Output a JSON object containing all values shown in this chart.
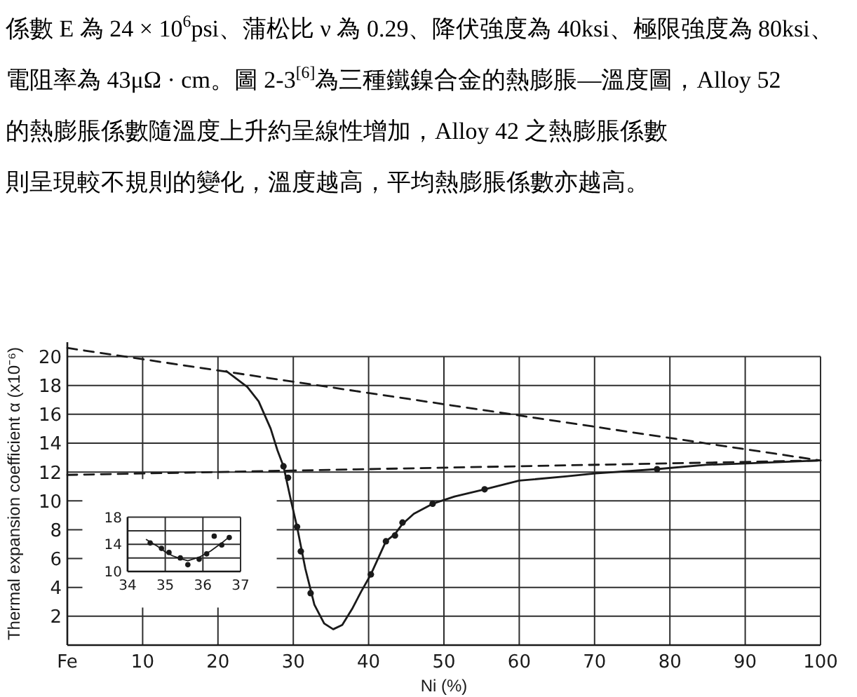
{
  "chart_data": [
    {
      "type": "line",
      "annotations": [
        "係數 E 為 24 × 10$^{6}$psi、蒲松比 ν 為 0.29、降伏強度為 40ksi、極限強度為 80ksi、",
        "電阻率為 43μΩ · cm。圖 2-3$^{[6]}$為三種鐵鎳合金的熱膨脹—溫度圖，Alloy 52",
        "的熱膨脹係數隨溫度上升約呈線性增加，Alloy 42 之熱膨脹係數",
        "則呈現較不規則的變化，溫度越高，平均熱膨脹係數亦越高。"
      ],
      "xlabel": "Ni (%)",
      "ylabel": "Thermal expansion coefficient α (x10⁻⁶)",
      "xlim": [
        0,
        100
      ],
      "xticks": [
        {
          "value": 0,
          "label": "Fe"
        },
        10,
        20,
        30,
        40,
        50,
        60,
        70,
        80,
        90,
        100
      ],
      "ylim": [
        0,
        21
      ],
      "yticks": [
        2,
        4,
        6,
        8,
        10,
        12,
        14,
        16,
        18,
        20
      ],
      "grid": true,
      "series": [
        {
          "type": "line",
          "line_style": "dashed",
          "color": "#1a1a1a",
          "x": [
            0,
            100
          ],
          "values": [
            20.6,
            12.8
          ]
        },
        {
          "type": "line",
          "line_style": "dashed",
          "color": "#1a1a1a",
          "x": [
            0,
            100
          ],
          "values": [
            11.8,
            12.8
          ]
        },
        {
          "type": "line",
          "line_style": "solid",
          "color": "#1a1a1a",
          "x": [
            21.1,
            23.9,
            25.4,
            27.0,
            27.9,
            28.7,
            29.7,
            30.5,
            31.6,
            32.8,
            34.1,
            35.3,
            36.5,
            37.8,
            39.0,
            40.3,
            42.3,
            43.5,
            44.5,
            46.0,
            48.5,
            51.4,
            55.4,
            60.0,
            66.2,
            70.1,
            78.3,
            84.8,
            90.2,
            100
          ],
          "values": [
            19.0,
            17.9,
            16.9,
            15.0,
            13.5,
            12.4,
            10.0,
            8.2,
            5.3,
            2.8,
            1.5,
            1.1,
            1.4,
            2.5,
            3.7,
            4.9,
            7.2,
            7.7,
            8.4,
            9.1,
            9.8,
            10.3,
            10.8,
            11.4,
            11.7,
            11.9,
            12.2,
            12.5,
            12.6,
            12.8
          ]
        },
        {
          "type": "scatter",
          "marker": "circle",
          "color": "#1a1a1a",
          "x": [
            28.7,
            29.3,
            30.5,
            31.0,
            32.3,
            40.3,
            42.3,
            43.5,
            44.5,
            48.5,
            55.4,
            78.3
          ],
          "values": [
            12.4,
            11.6,
            8.2,
            6.5,
            3.6,
            4.9,
            7.2,
            7.6,
            8.5,
            9.8,
            10.8,
            12.2
          ]
        }
      ]
    },
    {
      "type": "line",
      "xlim": [
        34,
        37
      ],
      "xticks": [
        34,
        35,
        36,
        37
      ],
      "ylim": [
        10,
        18
      ],
      "yticks": [
        10,
        {
          "value": 12,
          "label": null
        },
        14,
        {
          "value": 16,
          "label": null
        },
        18
      ],
      "grid": true,
      "series": [
        {
          "type": "line",
          "line_style": "solid",
          "color": "#1a1a1a",
          "x": [
            34.5,
            34.8,
            35.0,
            35.2,
            35.4,
            35.6,
            35.9,
            36.2,
            36.5,
            36.7
          ],
          "values": [
            14.7,
            13.7,
            12.9,
            12.3,
            11.9,
            11.6,
            12.1,
            13.0,
            14.2,
            15.1
          ]
        },
        {
          "type": "scatter",
          "marker": "circle",
          "color": "#1a1a1a",
          "x": [
            34.6,
            34.9,
            35.1,
            35.4,
            35.6,
            35.9,
            36.1,
            36.3,
            36.5,
            36.7
          ],
          "values": [
            14.2,
            13.4,
            12.8,
            12.0,
            11.0,
            11.8,
            12.6,
            15.2,
            13.9,
            15.0
          ]
        }
      ]
    }
  ]
}
